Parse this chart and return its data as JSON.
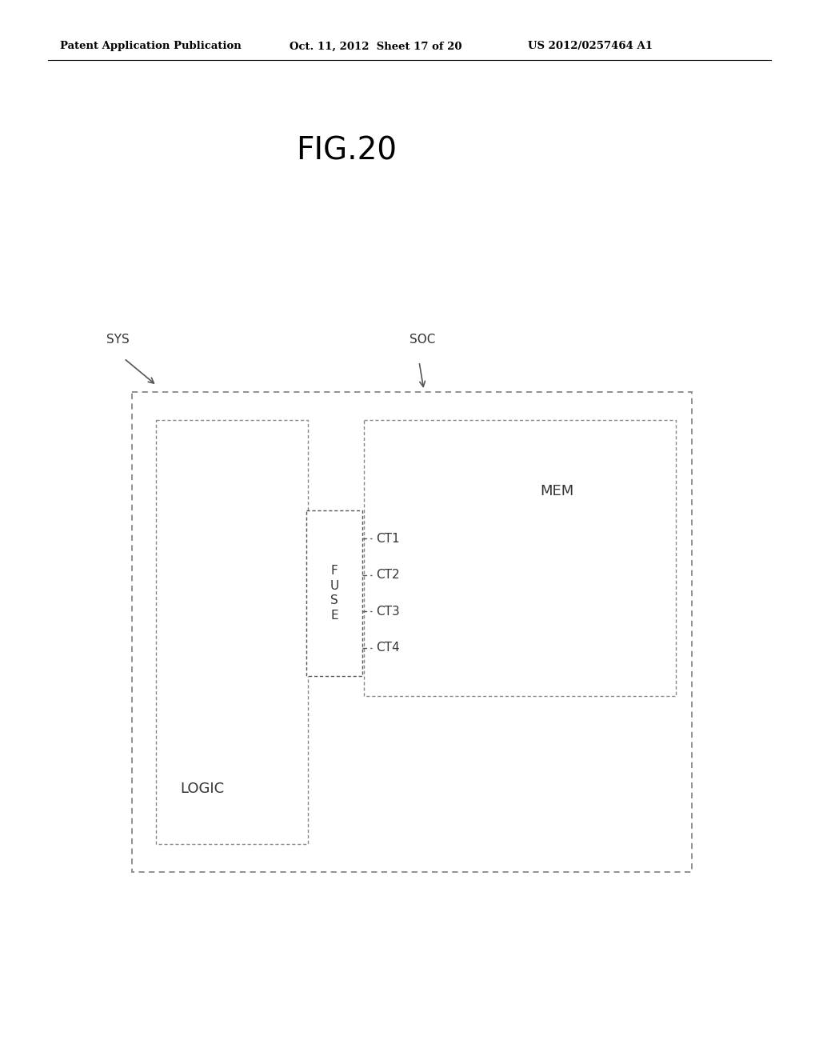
{
  "bg_color": "#ffffff",
  "header_left": "Patent Application Publication",
  "header_mid": "Oct. 11, 2012  Sheet 17 of 20",
  "header_right": "US 2012/0257464 A1",
  "figure_title": "FIG.20",
  "label_sys": "SYS",
  "label_soc": "SOC",
  "label_logic": "LOGIC",
  "label_mem": "MEM",
  "label_fuse": "F\nU\nS\nE",
  "ct_labels": [
    "CT1",
    "CT2",
    "CT3",
    "CT4"
  ],
  "line_color": "#555555",
  "text_color": "#333333"
}
